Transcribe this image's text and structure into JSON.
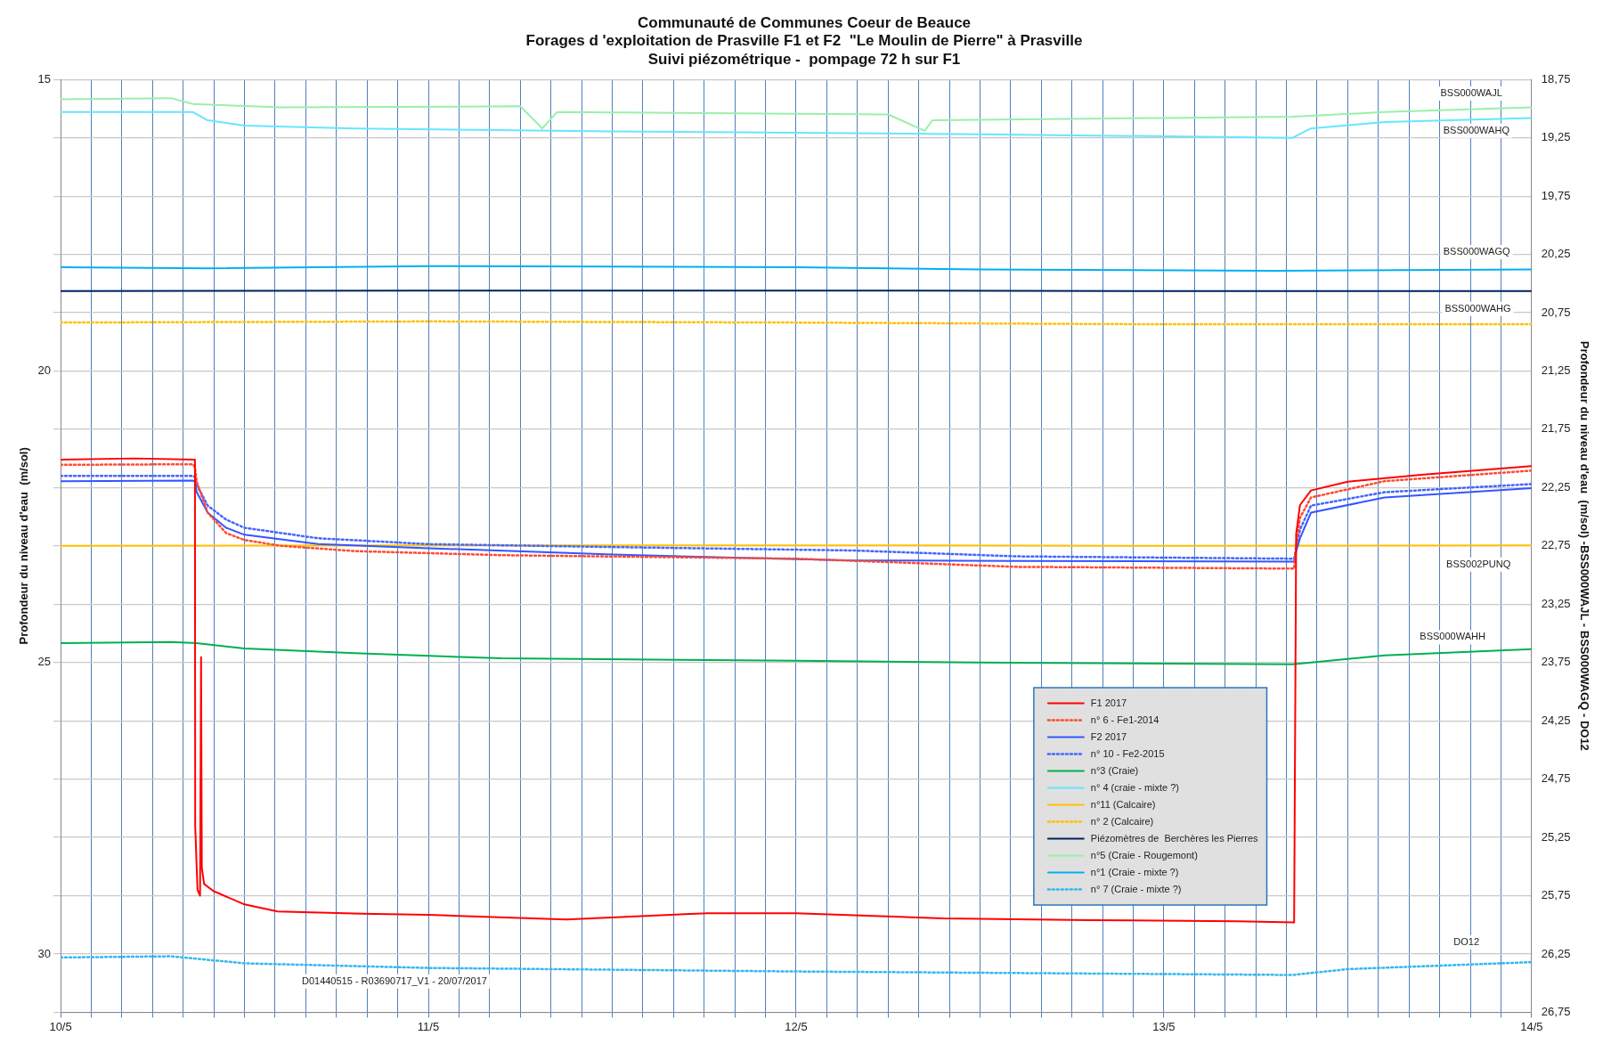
{
  "chart_data": {
    "type": "line",
    "title": "Communauté de Communes Coeur de Beauce\nForages d 'exploitation de Prasville F1 et F2  \"Le Moulin de Pierre\" à Prasville\nSuivi piézométrique -  pompage 72 h sur F1",
    "ylabel": "Profondeur du niveau d'eau  (m/sol)",
    "y2label": "Profondeur du niveau d'eau  (m/sol) -BSS000WAJL - BSS000WAGQ - DO12",
    "xlim": [
      "--05-10",
      "--05-14"
    ],
    "xticks": [
      {
        "value": "--05-10",
        "label": "10/5"
      },
      {
        "value": "--05-10T02:00",
        "label": null
      },
      {
        "value": "--05-10T04:00",
        "label": null
      },
      {
        "value": "--05-10T06:00",
        "label": null
      },
      {
        "value": "--05-10T08:00",
        "label": null
      },
      {
        "value": "--05-10T10:00",
        "label": null
      },
      {
        "value": "--05-10T12:00",
        "label": null
      },
      {
        "value": "--05-10T14:00",
        "label": null
      },
      {
        "value": "--05-10T16:00",
        "label": null
      },
      {
        "value": "--05-10T18:00",
        "label": null
      },
      {
        "value": "--05-10T20:00",
        "label": null
      },
      {
        "value": "--05-10T22:00",
        "label": null
      },
      {
        "value": "--05-11",
        "label": "11/5"
      },
      {
        "value": "--05-11T02:00",
        "label": null
      },
      {
        "value": "--05-11T04:00",
        "label": null
      },
      {
        "value": "--05-11T06:00",
        "label": null
      },
      {
        "value": "--05-11T08:00",
        "label": null
      },
      {
        "value": "--05-11T10:00",
        "label": null
      },
      {
        "value": "--05-11T12:00",
        "label": null
      },
      {
        "value": "--05-11T14:00",
        "label": null
      },
      {
        "value": "--05-11T16:00",
        "label": null
      },
      {
        "value": "--05-11T18:00",
        "label": null
      },
      {
        "value": "--05-11T20:00",
        "label": null
      },
      {
        "value": "--05-11T22:00",
        "label": null
      },
      {
        "value": "--05-12",
        "label": "12/5"
      },
      {
        "value": "--05-12T02:00",
        "label": null
      },
      {
        "value": "--05-12T04:00",
        "label": null
      },
      {
        "value": "--05-12T06:00",
        "label": null
      },
      {
        "value": "--05-12T08:00",
        "label": null
      },
      {
        "value": "--05-12T10:00",
        "label": null
      },
      {
        "value": "--05-12T12:00",
        "label": null
      },
      {
        "value": "--05-12T14:00",
        "label": null
      },
      {
        "value": "--05-12T16:00",
        "label": null
      },
      {
        "value": "--05-12T18:00",
        "label": null
      },
      {
        "value": "--05-12T20:00",
        "label": null
      },
      {
        "value": "--05-12T22:00",
        "label": null
      },
      {
        "value": "--05-13",
        "label": "13/5"
      },
      {
        "value": "--05-13T02:00",
        "label": null
      },
      {
        "value": "--05-13T04:00",
        "label": null
      },
      {
        "value": "--05-13T06:00",
        "label": null
      },
      {
        "value": "--05-13T08:00",
        "label": null
      },
      {
        "value": "--05-13T10:00",
        "label": null
      },
      {
        "value": "--05-13T12:00",
        "label": null
      },
      {
        "value": "--05-13T14:00",
        "label": null
      },
      {
        "value": "--05-13T16:00",
        "label": null
      },
      {
        "value": "--05-13T18:00",
        "label": null
      },
      {
        "value": "--05-13T20:00",
        "label": null
      },
      {
        "value": "--05-13T22:00",
        "label": null
      },
      {
        "value": "--05-14",
        "label": "14/5"
      }
    ],
    "ylim": [
      31,
      15
    ],
    "yticks": [
      15,
      {
        "value": 16,
        "label": null
      },
      {
        "value": 17,
        "label": null
      },
      {
        "value": 18,
        "label": null
      },
      {
        "value": 19,
        "label": null
      },
      20,
      {
        "value": 21,
        "label": null
      },
      {
        "value": 22,
        "label": null
      },
      {
        "value": 23,
        "label": null
      },
      {
        "value": 24,
        "label": null
      },
      25,
      {
        "value": 26,
        "label": null
      },
      {
        "value": 27,
        "label": null
      },
      {
        "value": 28,
        "label": null
      },
      {
        "value": 29,
        "label": null
      },
      30,
      {
        "value": 31,
        "label": null
      }
    ],
    "y2lim": [
      26.75,
      18.75
    ],
    "y2ticks": [
      {
        "value": 18.75,
        "label": "18,75"
      },
      {
        "value": 19.25,
        "label": "19,25"
      },
      {
        "value": 19.75,
        "label": "19,75"
      },
      {
        "value": 20.25,
        "label": "20,25"
      },
      {
        "value": 20.75,
        "label": "20,75"
      },
      {
        "value": 21.25,
        "label": "21,25"
      },
      {
        "value": 21.75,
        "label": "21,75"
      },
      {
        "value": 22.25,
        "label": "22,25"
      },
      {
        "value": 22.75,
        "label": "22,75"
      },
      {
        "value": 23.25,
        "label": "23,25"
      },
      {
        "value": 23.75,
        "label": "23,75"
      },
      {
        "value": 24.25,
        "label": "24,25"
      },
      {
        "value": 24.75,
        "label": "24,75"
      },
      {
        "value": 25.25,
        "label": "25,25"
      },
      {
        "value": 25.75,
        "label": "25,75"
      },
      {
        "value": 26.25,
        "label": "26,25"
      },
      {
        "value": 26.75,
        "label": "26,75"
      }
    ],
    "grid": true,
    "legend": "bottom right",
    "marker": "none",
    "series": [
      {
        "name": "F1 2017",
        "color": "#ff0000",
        "line_style": "solid",
        "x": [
          "--05-10",
          "--05-10T04:48",
          "--05-10T08:46",
          "--05-10T08:47",
          "--05-10T08:56",
          "--05-10T09:06",
          "--05-10T09:10",
          "--05-10T09:13",
          "--05-10T09:22",
          "--05-10T09:58",
          "--05-10T12:00",
          "--05-10T14:10",
          "--05-10T19:41",
          "--05-11",
          "--05-11T09:00",
          "--05-11T18:14",
          "--05-12",
          "--05-12T09:36",
          "--05-12T19:12",
          "--05-13T04:48",
          "--05-13T08:30",
          "--05-13T08:33",
          "--05-13T08:38",
          "--05-13T08:53",
          "--05-13T09:36",
          "--05-13T12:00",
          "--05-13T16:48",
          "--05-14"
        ],
        "values": [
          21.52,
          21.5,
          21.52,
          27.8,
          28.9,
          29.0,
          24.91,
          28.52,
          28.8,
          28.92,
          29.15,
          29.27,
          29.31,
          29.33,
          29.41,
          29.3,
          29.3,
          29.39,
          29.42,
          29.44,
          29.46,
          27.0,
          22.8,
          22.3,
          22.05,
          21.9,
          21.78,
          21.63
        ]
      },
      {
        "name": "n° 6 - Fe1-2014",
        "color": "#ff4b33",
        "line_style": "dotted",
        "x": [
          "--05-10",
          "--05-10T08:38",
          "--05-10T08:46",
          "--05-10T08:53",
          "--05-10T09:36",
          "--05-10T10:48",
          "--05-10T12:00",
          "--05-10T14:24",
          "--05-10T19:12",
          "--05-11T04:48",
          "--05-12",
          "--05-12T14:24",
          "--05-13T08:30",
          "--05-13T08:38",
          "--05-13T08:53",
          "--05-13T09:36",
          "--05-13T14:24",
          "--05-14"
        ],
        "values": [
          21.61,
          21.6,
          21.65,
          21.9,
          22.43,
          22.78,
          22.9,
          23.0,
          23.09,
          23.16,
          23.22,
          23.36,
          23.39,
          23.0,
          22.52,
          22.17,
          21.89,
          21.71
        ]
      },
      {
        "name": "F2 2017",
        "color": "#3355ff",
        "line_style": "solid",
        "x": [
          "--05-10",
          "--05-10T08:38",
          "--05-10T08:46",
          "--05-10T08:53",
          "--05-10T09:36",
          "--05-10T10:48",
          "--05-10T12:00",
          "--05-10T16:48",
          "--05-11",
          "--05-11T12:00",
          "--05-12T03:50",
          "--05-12T14:24",
          "--05-13T08:30",
          "--05-13T08:38",
          "--05-13T08:53",
          "--05-13T09:36",
          "--05-13T14:24",
          "--05-14"
        ],
        "values": [
          21.89,
          21.88,
          21.9,
          22.08,
          22.43,
          22.69,
          22.81,
          22.97,
          23.04,
          23.15,
          23.25,
          23.26,
          23.27,
          23.1,
          22.87,
          22.43,
          22.17,
          22.01
        ]
      },
      {
        "name": "n° 10 - Fe2-2015",
        "color": "#4466ff",
        "line_style": "dotted",
        "x": [
          "--05-10",
          "--05-10T08:38",
          "--05-10T08:46",
          "--05-10T08:53",
          "--05-10T09:36",
          "--05-10T10:48",
          "--05-10T12:00",
          "--05-10T16:48",
          "--05-11",
          "--05-11T12:00",
          "--05-12T03:50",
          "--05-12T14:24",
          "--05-13T08:30",
          "--05-13T08:38",
          "--05-13T08:53",
          "--05-13T09:36",
          "--05-13T14:24",
          "--05-14"
        ],
        "values": [
          21.8,
          21.8,
          21.82,
          21.95,
          22.31,
          22.55,
          22.69,
          22.87,
          22.97,
          23.02,
          23.08,
          23.18,
          23.22,
          23.05,
          22.72,
          22.31,
          22.08,
          21.94
        ]
      },
      {
        "name": "n°3 (Craie)",
        "color": "#00b050",
        "line_style": "solid",
        "x": [
          "--05-10",
          "--05-10T07:12",
          "--05-10T08:53",
          "--05-10T12:00",
          "--05-10T19:12",
          "--05-11T04:48",
          "--05-12",
          "--05-12T12:00",
          "--05-13T08:24",
          "--05-13T09:36",
          "--05-13T14:24",
          "--05-14"
        ],
        "values": [
          24.67,
          24.65,
          24.67,
          24.76,
          24.84,
          24.93,
          24.97,
          25.0,
          25.03,
          25.0,
          24.88,
          24.77
        ]
      },
      {
        "name": "n° 4 (craie - mixte ?)",
        "color": "#66e6ff",
        "line_style": "solid",
        "x": [
          "--05-10",
          "--05-10T08:38",
          "--05-10T09:36",
          "--05-10T12:00",
          "--05-10T19:12",
          "--05-11T12:00",
          "--05-12T12:00",
          "--05-13T08:24",
          "--05-13T09:36",
          "--05-13T14:24",
          "--05-14"
        ],
        "values": [
          15.56,
          15.56,
          15.7,
          15.79,
          15.84,
          15.89,
          15.94,
          16.0,
          15.84,
          15.73,
          15.66
        ]
      },
      {
        "name": "n°11 (Calcaire)",
        "color": "#ffc000",
        "line_style": "solid",
        "x": [
          "--05-10",
          "--05-11",
          "--05-12",
          "--05-13",
          "--05-14"
        ],
        "values": [
          23.0,
          22.99,
          22.99,
          23.0,
          22.99
        ]
      },
      {
        "name": "n° 2 (Calcaire)",
        "color": "#ffc000",
        "line_style": "dotted",
        "x": [
          "--05-10",
          "--05-11",
          "--05-12",
          "--05-13",
          "--05-14"
        ],
        "values": [
          19.17,
          19.15,
          19.17,
          19.2,
          19.2
        ]
      },
      {
        "name": "Piézomètres de  Berchères les Pierres",
        "color": "#002060",
        "line_style": "solid",
        "x": [
          "--05-10",
          "--05-11",
          "--05-12",
          "--05-13",
          "--05-14"
        ],
        "values": [
          18.63,
          18.62,
          18.62,
          18.63,
          18.63
        ]
      },
      {
        "name": "n°5 (Craie - Rougemont)",
        "color": "#99f0aa",
        "line_style": "solid",
        "axis": "y2",
        "x": [
          "--05-10",
          "--05-10T07:12",
          "--05-10T08:38",
          "--05-10T14:24",
          "--05-11T06:00",
          "--05-11T07:26",
          "--05-11T08:24",
          "--05-12T06:00",
          "--05-12T08:24",
          "--05-12T08:53",
          "--05-13",
          "--05-13T08:24",
          "--05-13T14:24",
          "--05-14"
        ],
        "values": [
          18.92,
          18.91,
          18.96,
          18.99,
          18.98,
          19.17,
          19.03,
          19.05,
          19.19,
          19.1,
          19.08,
          19.07,
          19.03,
          18.99
        ]
      },
      {
        "name": "n°1 (Craie - mixte ?)",
        "color": "#00b0f0",
        "line_style": "solid",
        "axis": "y2",
        "x": [
          "--05-10",
          "--05-10T09:36",
          "--05-11",
          "--05-12",
          "--05-12T12:00",
          "--05-13T07:12",
          "--05-14"
        ],
        "values": [
          20.36,
          20.37,
          20.35,
          20.36,
          20.38,
          20.39,
          20.38
        ]
      },
      {
        "name": "n° 7 (Craie - mixte ?)",
        "color": "#33b8f0",
        "line_style": "dotted",
        "axis": "y2",
        "x": [
          "--05-10",
          "--05-10T07:12",
          "--05-10T12:00",
          "--05-11",
          "--05-12",
          "--05-13T08:24",
          "--05-13T12:00",
          "--05-14"
        ],
        "values": [
          26.28,
          26.27,
          26.33,
          26.37,
          26.4,
          26.43,
          26.38,
          26.32
        ]
      }
    ],
    "annotations": [
      "BSS000WAJL",
      "BSS000WAHQ",
      "BSS000WAGQ",
      "BSS000WAHG",
      "BSS002PUNQ",
      "BSS000WAHH",
      "DO12",
      "D01440515 - R03690717_V1 - 20/07/2017"
    ]
  }
}
